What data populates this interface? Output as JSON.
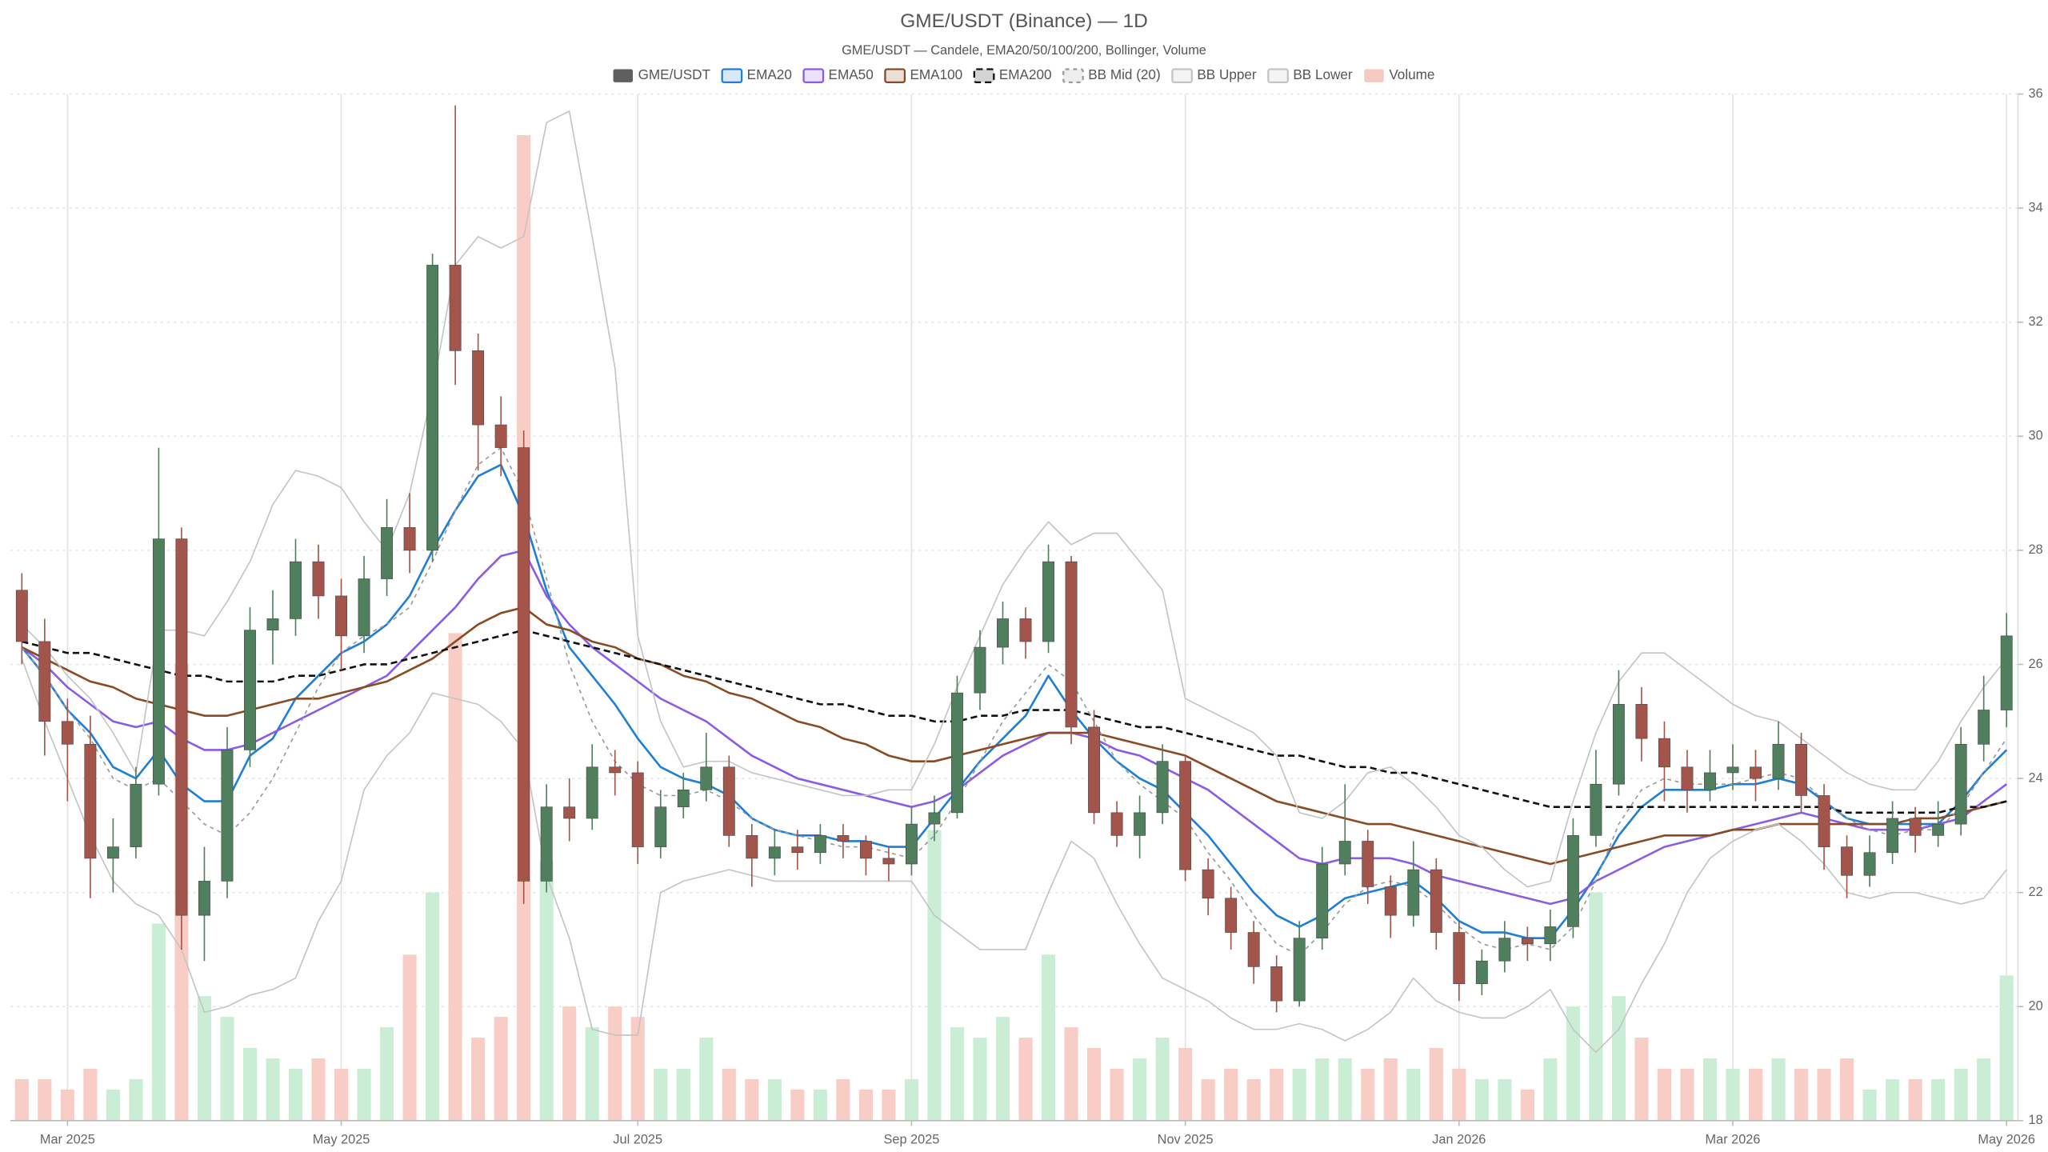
{
  "chart_data": {
    "type": "candlestick",
    "title": "GME/USDT (Binance) — 1D",
    "subtitle": "GME/USDT — Candele, EMA20/50/100/200, Bollinger, Volume",
    "categories": [
      null,
      null,
      "Mar 2025",
      null,
      null,
      null,
      null,
      null,
      null,
      null,
      null,
      null,
      null,
      null,
      "May 2025",
      null,
      null,
      null,
      null,
      null,
      null,
      null,
      null,
      null,
      null,
      null,
      null,
      "Jul 2025",
      null,
      null,
      null,
      null,
      null,
      null,
      null,
      null,
      null,
      null,
      null,
      "Sep 2025",
      null,
      null,
      null,
      null,
      null,
      null,
      null,
      null,
      null,
      null,
      null,
      "Nov 2025",
      null,
      null,
      null,
      null,
      null,
      null,
      null,
      null,
      null,
      null,
      null,
      "Jan 2026",
      null,
      null,
      null,
      null,
      null,
      null,
      null,
      null,
      null,
      null,
      null,
      "Mar 2026",
      null,
      null,
      null,
      null,
      null,
      null,
      null,
      null,
      null,
      null,
      null,
      "May 2026"
    ],
    "candles": {
      "name": "GME/USDT",
      "color": "#5f5f5f",
      "up_color": "#4f7f5c",
      "down_color": "#a4554b",
      "open": [
        27.3,
        26.4,
        25.0,
        24.6,
        22.6,
        22.8,
        23.9,
        28.2,
        21.6,
        22.2,
        24.5,
        26.6,
        26.8,
        27.8,
        27.2,
        26.5,
        27.5,
        28.4,
        28.0,
        33.0,
        31.5,
        30.2,
        29.8,
        22.2,
        23.5,
        23.3,
        24.2,
        24.1,
        22.8,
        23.5,
        23.8,
        24.2,
        23.0,
        22.6,
        22.8,
        22.7,
        23.0,
        22.9,
        22.6,
        22.5,
        23.2,
        23.4,
        25.5,
        26.3,
        26.8,
        26.4,
        27.8,
        24.9,
        23.4,
        23.0,
        23.4,
        24.3,
        22.4,
        21.9,
        21.3,
        20.7,
        20.1,
        21.2,
        22.5,
        22.9,
        22.1,
        21.6,
        22.4,
        21.3,
        20.4,
        20.8,
        21.2,
        21.1,
        21.4,
        23.0,
        23.9,
        25.3,
        24.7,
        24.2,
        23.8,
        24.1,
        24.2,
        24.0,
        24.6,
        23.7,
        22.8,
        22.3,
        22.7,
        23.3,
        23.0,
        23.2,
        24.6,
        25.2
      ],
      "high": [
        27.6,
        26.8,
        25.4,
        25.1,
        23.3,
        24.2,
        29.8,
        28.4,
        22.8,
        24.9,
        27.0,
        27.3,
        28.2,
        28.1,
        27.5,
        27.9,
        28.9,
        29.0,
        33.2,
        35.8,
        31.8,
        30.7,
        30.1,
        23.9,
        24.0,
        24.6,
        24.5,
        24.3,
        23.8,
        24.1,
        24.8,
        24.4,
        23.2,
        23.1,
        23.1,
        23.2,
        23.2,
        23.0,
        22.8,
        23.5,
        23.7,
        25.8,
        26.6,
        27.1,
        27.0,
        28.1,
        27.9,
        25.2,
        23.6,
        23.7,
        24.6,
        24.4,
        22.6,
        22.1,
        21.5,
        20.9,
        21.5,
        22.8,
        23.9,
        23.1,
        22.3,
        22.9,
        22.6,
        21.5,
        21.0,
        21.5,
        21.4,
        21.7,
        23.3,
        24.5,
        25.9,
        25.6,
        25.0,
        24.5,
        24.5,
        24.6,
        24.5,
        25.0,
        24.8,
        23.9,
        23.0,
        23.0,
        23.6,
        23.5,
        23.6,
        24.9,
        25.8,
        26.9
      ],
      "low": [
        26.0,
        24.4,
        23.6,
        21.9,
        22.0,
        22.6,
        23.7,
        21.0,
        20.8,
        21.9,
        24.2,
        26.0,
        26.5,
        26.8,
        25.9,
        26.2,
        27.2,
        27.6,
        27.8,
        30.9,
        29.4,
        29.3,
        21.8,
        22.0,
        22.9,
        23.1,
        23.7,
        22.5,
        22.6,
        23.3,
        23.6,
        22.8,
        22.1,
        22.3,
        22.4,
        22.5,
        22.6,
        22.3,
        22.2,
        22.3,
        22.9,
        23.3,
        25.2,
        26.0,
        26.1,
        26.2,
        24.6,
        23.2,
        22.8,
        22.6,
        23.2,
        22.2,
        21.6,
        21.0,
        20.4,
        19.9,
        20.0,
        21.0,
        22.3,
        21.8,
        21.2,
        21.4,
        21.0,
        20.1,
        20.2,
        20.6,
        20.8,
        20.8,
        21.2,
        22.8,
        23.7,
        24.3,
        23.6,
        23.4,
        23.6,
        23.8,
        23.6,
        23.8,
        23.4,
        22.4,
        21.9,
        22.1,
        22.5,
        22.7,
        22.8,
        23.0,
        24.3,
        24.9
      ],
      "close": [
        26.4,
        25.0,
        24.6,
        22.6,
        22.8,
        23.9,
        28.2,
        21.6,
        22.2,
        24.5,
        26.6,
        26.8,
        27.8,
        27.2,
        26.5,
        27.5,
        28.4,
        28.0,
        33.0,
        31.5,
        30.2,
        29.8,
        22.2,
        23.5,
        23.3,
        24.2,
        24.1,
        22.8,
        23.5,
        23.8,
        24.2,
        23.0,
        22.6,
        22.8,
        22.7,
        23.0,
        22.9,
        22.6,
        22.5,
        23.2,
        23.4,
        25.5,
        26.3,
        26.8,
        26.4,
        27.8,
        24.9,
        23.4,
        23.0,
        23.4,
        24.3,
        22.4,
        21.9,
        21.3,
        20.7,
        20.1,
        21.2,
        22.5,
        22.9,
        22.1,
        21.6,
        22.4,
        21.3,
        20.4,
        20.8,
        21.2,
        21.1,
        21.4,
        23.0,
        23.9,
        25.3,
        24.7,
        24.2,
        23.8,
        24.1,
        24.2,
        24.0,
        24.6,
        23.7,
        22.8,
        22.3,
        22.7,
        23.3,
        23.0,
        23.2,
        24.6,
        25.2,
        26.5
      ]
    },
    "series": [
      {
        "name": "EMA20",
        "color": "#1f7fd6",
        "dash": "solid",
        "values": [
          26.3,
          25.8,
          25.2,
          24.8,
          24.2,
          24.0,
          24.5,
          23.9,
          23.6,
          23.6,
          24.4,
          24.7,
          25.4,
          25.8,
          26.2,
          26.4,
          26.7,
          27.2,
          28.0,
          28.7,
          29.3,
          29.5,
          28.6,
          27.3,
          26.3,
          25.8,
          25.3,
          24.7,
          24.2,
          24.0,
          23.9,
          23.7,
          23.3,
          23.1,
          23.0,
          23.0,
          22.9,
          22.9,
          22.8,
          22.8,
          23.3,
          23.8,
          24.3,
          24.7,
          25.1,
          25.8,
          25.2,
          24.7,
          24.3,
          24.0,
          23.8,
          23.4,
          23.0,
          22.5,
          22.0,
          21.6,
          21.4,
          21.6,
          21.9,
          22.0,
          22.1,
          22.2,
          21.9,
          21.5,
          21.3,
          21.3,
          21.2,
          21.2,
          21.7,
          22.3,
          23.0,
          23.5,
          23.8,
          23.8,
          23.8,
          23.9,
          23.9,
          24.0,
          23.9,
          23.6,
          23.3,
          23.2,
          23.2,
          23.2,
          23.2,
          23.6,
          24.1,
          24.5
        ]
      },
      {
        "name": "EMA50",
        "color": "#8b5be6",
        "dash": "solid",
        "values": [
          26.3,
          26.0,
          25.6,
          25.3,
          25.0,
          24.9,
          25.0,
          24.7,
          24.5,
          24.5,
          24.6,
          24.8,
          25.0,
          25.2,
          25.4,
          25.6,
          25.8,
          26.2,
          26.6,
          27.0,
          27.5,
          27.9,
          28.0,
          27.2,
          26.7,
          26.3,
          26.0,
          25.7,
          25.4,
          25.2,
          25.0,
          24.7,
          24.4,
          24.2,
          24.0,
          23.9,
          23.8,
          23.7,
          23.6,
          23.5,
          23.6,
          23.8,
          24.1,
          24.4,
          24.6,
          24.8,
          24.8,
          24.7,
          24.5,
          24.4,
          24.2,
          24.0,
          23.8,
          23.5,
          23.2,
          22.9,
          22.6,
          22.5,
          22.6,
          22.6,
          22.6,
          22.5,
          22.3,
          22.2,
          22.1,
          22.0,
          21.9,
          21.8,
          21.9,
          22.2,
          22.4,
          22.6,
          22.8,
          22.9,
          23.0,
          23.1,
          23.2,
          23.3,
          23.4,
          23.3,
          23.2,
          23.1,
          23.1,
          23.1,
          23.2,
          23.3,
          23.6,
          23.9
        ]
      },
      {
        "name": "EMA100",
        "color": "#8a4b22",
        "dash": "solid",
        "values": [
          26.3,
          26.1,
          25.9,
          25.7,
          25.6,
          25.4,
          25.3,
          25.2,
          25.1,
          25.1,
          25.2,
          25.3,
          25.4,
          25.4,
          25.5,
          25.6,
          25.7,
          25.9,
          26.1,
          26.4,
          26.7,
          26.9,
          27.0,
          26.7,
          26.6,
          26.4,
          26.3,
          26.1,
          26.0,
          25.8,
          25.7,
          25.5,
          25.4,
          25.2,
          25.0,
          24.9,
          24.7,
          24.6,
          24.4,
          24.3,
          24.3,
          24.4,
          24.5,
          24.6,
          24.7,
          24.8,
          24.8,
          24.8,
          24.7,
          24.6,
          24.5,
          24.4,
          24.2,
          24.0,
          23.8,
          23.6,
          23.5,
          23.4,
          23.3,
          23.2,
          23.2,
          23.1,
          23.0,
          22.9,
          22.8,
          22.7,
          22.6,
          22.5,
          22.6,
          22.7,
          22.8,
          22.9,
          23.0,
          23.0,
          23.0,
          23.1,
          23.1,
          23.2,
          23.2,
          23.2,
          23.2,
          23.2,
          23.2,
          23.3,
          23.3,
          23.4,
          23.5,
          23.6
        ]
      },
      {
        "name": "EMA200",
        "color": "#111111",
        "dash": "dashed",
        "values": [
          26.4,
          26.3,
          26.2,
          26.2,
          26.1,
          26.0,
          25.9,
          25.8,
          25.8,
          25.7,
          25.7,
          25.7,
          25.8,
          25.8,
          25.9,
          26.0,
          26.0,
          26.1,
          26.2,
          26.3,
          26.4,
          26.5,
          26.6,
          26.5,
          26.4,
          26.3,
          26.2,
          26.1,
          26.0,
          25.9,
          25.8,
          25.7,
          25.6,
          25.5,
          25.4,
          25.3,
          25.3,
          25.2,
          25.1,
          25.1,
          25.0,
          25.0,
          25.1,
          25.1,
          25.2,
          25.2,
          25.2,
          25.1,
          25.0,
          24.9,
          24.9,
          24.8,
          24.7,
          24.6,
          24.5,
          24.4,
          24.4,
          24.3,
          24.2,
          24.2,
          24.1,
          24.1,
          24.0,
          23.9,
          23.8,
          23.7,
          23.6,
          23.5,
          23.5,
          23.5,
          23.5,
          23.5,
          23.5,
          23.5,
          23.5,
          23.5,
          23.5,
          23.5,
          23.5,
          23.5,
          23.4,
          23.4,
          23.4,
          23.4,
          23.4,
          23.5,
          23.5,
          23.6
        ]
      },
      {
        "name": "BB Mid (20)",
        "color": "#999999",
        "dash": "dotted",
        "values": [
          26.3,
          25.8,
          25.2,
          24.7,
          24.0,
          23.8,
          24.0,
          23.6,
          23.2,
          23.0,
          23.4,
          24.0,
          24.8,
          25.6,
          26.2,
          26.5,
          26.7,
          27.0,
          27.8,
          28.7,
          29.5,
          29.8,
          29.0,
          27.5,
          26.0,
          25.0,
          24.3,
          23.9,
          23.7,
          23.7,
          23.8,
          23.6,
          23.3,
          23.1,
          23.0,
          22.9,
          22.8,
          22.8,
          22.7,
          22.6,
          23.0,
          23.6,
          24.3,
          25.0,
          25.5,
          26.0,
          25.7,
          25.0,
          24.3,
          23.9,
          23.6,
          23.3,
          22.7,
          22.2,
          21.6,
          21.1,
          20.9,
          21.3,
          21.8,
          22.1,
          22.2,
          22.1,
          21.8,
          21.4,
          21.1,
          21.0,
          21.1,
          21.0,
          21.4,
          22.2,
          23.2,
          23.8,
          24.0,
          23.9,
          23.9,
          23.9,
          24.0,
          24.1,
          24.0,
          23.6,
          23.3,
          23.1,
          23.0,
          23.1,
          23.1,
          23.5,
          24.1,
          24.7
        ]
      },
      {
        "name": "BB Upper",
        "color": "#c4c4c4",
        "dash": "solid",
        "values": [
          26.7,
          26.3,
          25.8,
          25.4,
          24.8,
          24.1,
          26.6,
          26.6,
          26.5,
          27.1,
          27.8,
          28.8,
          29.4,
          29.3,
          29.1,
          28.5,
          28.0,
          29.0,
          30.8,
          33.0,
          33.5,
          33.3,
          33.5,
          35.5,
          35.7,
          33.5,
          31.2,
          26.5,
          25.0,
          24.2,
          24.3,
          24.3,
          24.1,
          24.0,
          23.9,
          23.8,
          23.7,
          23.7,
          23.8,
          23.8,
          24.6,
          25.6,
          26.5,
          27.4,
          28.0,
          28.5,
          28.1,
          28.3,
          28.3,
          27.8,
          27.3,
          25.4,
          25.2,
          25.0,
          24.8,
          24.4,
          23.4,
          23.3,
          23.6,
          24.1,
          24.2,
          23.9,
          23.5,
          23.0,
          22.8,
          22.4,
          22.1,
          22.2,
          23.6,
          24.8,
          25.7,
          26.2,
          26.2,
          25.9,
          25.6,
          25.3,
          25.1,
          25.0,
          24.7,
          24.4,
          24.1,
          23.9,
          23.8,
          23.8,
          24.3,
          25.0,
          25.6,
          26.1
        ]
      },
      {
        "name": "BB Lower",
        "color": "#c4c4c4",
        "dash": "solid",
        "values": [
          26.1,
          25.0,
          24.0,
          23.0,
          22.2,
          21.8,
          21.6,
          21.0,
          19.9,
          20.0,
          20.2,
          20.3,
          20.5,
          21.5,
          22.2,
          23.8,
          24.4,
          24.8,
          25.5,
          25.4,
          25.3,
          25.0,
          24.5,
          22.3,
          21.2,
          19.6,
          19.5,
          19.5,
          22.0,
          22.2,
          22.3,
          22.4,
          22.3,
          22.2,
          22.2,
          22.2,
          22.2,
          22.2,
          22.2,
          22.2,
          21.6,
          21.3,
          21.0,
          21.0,
          21.0,
          22.0,
          22.9,
          22.6,
          21.8,
          21.1,
          20.5,
          20.3,
          20.1,
          19.8,
          19.6,
          19.6,
          19.7,
          19.6,
          19.4,
          19.6,
          19.9,
          20.5,
          20.1,
          19.9,
          19.8,
          19.8,
          20.0,
          20.3,
          19.6,
          19.2,
          19.6,
          20.4,
          21.1,
          22.0,
          22.6,
          22.9,
          23.1,
          23.2,
          22.9,
          22.5,
          22.0,
          21.9,
          22.0,
          22.0,
          21.9,
          21.8,
          21.9,
          22.4
        ]
      }
    ],
    "volume": {
      "name": "Volume",
      "color": "#f6c9c1",
      "up_color": "#c9eed5",
      "down_color": "#f8cdc6",
      "values": [
        4,
        4,
        3,
        5,
        3,
        4,
        19,
        44,
        12,
        10,
        7,
        6,
        5,
        6,
        5,
        5,
        9,
        16,
        22,
        47,
        8,
        10,
        95,
        25,
        11,
        9,
        11,
        10,
        5,
        5,
        8,
        5,
        4,
        4,
        3,
        3,
        4,
        3,
        3,
        4,
        28,
        9,
        8,
        10,
        8,
        16,
        9,
        7,
        5,
        6,
        8,
        7,
        4,
        5,
        4,
        5,
        5,
        6,
        6,
        5,
        6,
        5,
        7,
        5,
        4,
        4,
        3,
        6,
        11,
        22,
        12,
        8,
        5,
        5,
        6,
        5,
        5,
        6,
        5,
        5,
        6,
        3,
        4,
        4,
        4,
        5,
        6,
        14
      ]
    },
    "ylim": [
      18,
      36
    ],
    "yticks": [
      18,
      20,
      22,
      24,
      26,
      28,
      30,
      32,
      34,
      36
    ],
    "grid": true,
    "legend": "top"
  }
}
